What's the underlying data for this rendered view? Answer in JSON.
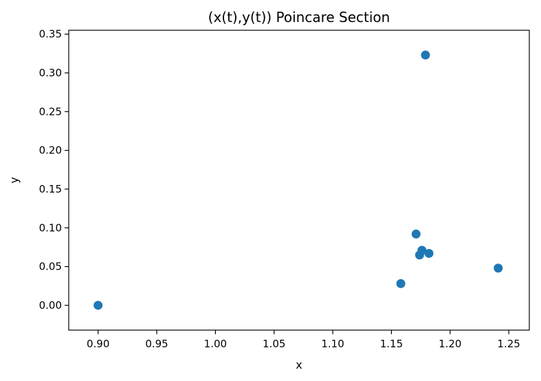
{
  "chart_data": {
    "type": "scatter",
    "title": "(x(t),y(t)) Poincare Section",
    "xlabel": "x",
    "ylabel": "y",
    "xlim": [
      0.875,
      1.2675
    ],
    "ylim": [
      -0.032,
      0.355
    ],
    "xticks": [
      "0.90",
      "0.95",
      "1.00",
      "1.05",
      "1.10",
      "1.15",
      "1.20",
      "1.25"
    ],
    "yticks": [
      "0.00",
      "0.05",
      "0.10",
      "0.15",
      "0.20",
      "0.25",
      "0.30",
      "0.35"
    ],
    "grid": false,
    "marker_color": "#1f77b4",
    "points": [
      {
        "x": 0.9,
        "y": 0.0
      },
      {
        "x": 1.158,
        "y": 0.028
      },
      {
        "x": 1.171,
        "y": 0.092
      },
      {
        "x": 1.174,
        "y": 0.065
      },
      {
        "x": 1.176,
        "y": 0.071
      },
      {
        "x": 1.179,
        "y": 0.323
      },
      {
        "x": 1.182,
        "y": 0.067
      },
      {
        "x": 1.241,
        "y": 0.048
      }
    ]
  }
}
